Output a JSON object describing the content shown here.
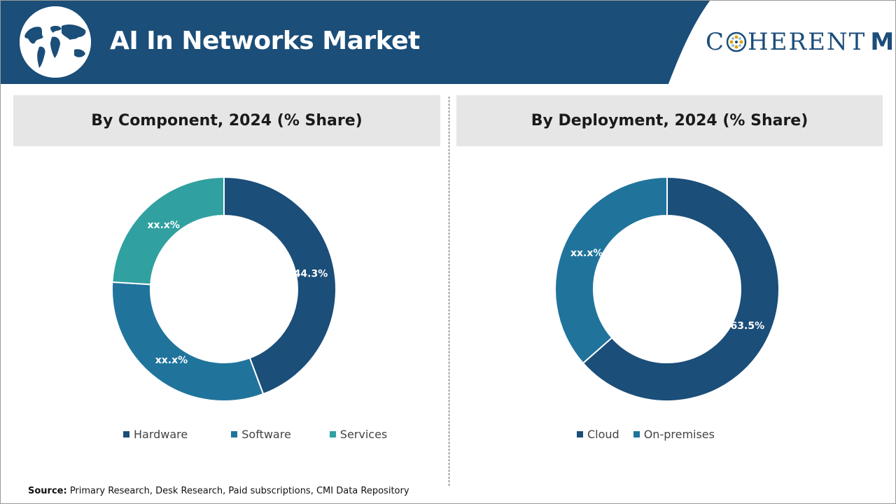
{
  "header": {
    "title": "AI In Networks Market",
    "brand_c": "C",
    "brand_rest": "HERENT",
    "brand_mi": "Mi",
    "band_color": "#1b4e79"
  },
  "panels": [
    {
      "heading": "By Component, 2024 (% Share)"
    },
    {
      "heading": "By Deployment, 2024 (% Share)"
    }
  ],
  "footer": {
    "source_label": "Source:",
    "source_text": " Primary Research, Desk Research, Paid subscriptions, CMI Data Repository"
  },
  "chart_data": [
    {
      "type": "pie",
      "donut": true,
      "title": "By Component, 2024 (% Share)",
      "categories": [
        "Hardware",
        "Software",
        "Services"
      ],
      "values": [
        44.3,
        31.7,
        24.0
      ],
      "labels": [
        "44.3%",
        "xx.x%",
        "xx.x%"
      ],
      "colors": [
        "#1b4e79",
        "#20749c",
        "#31a0a0"
      ],
      "legend_position": "bottom"
    },
    {
      "type": "pie",
      "donut": true,
      "title": "By Deployment, 2024 (% Share)",
      "categories": [
        "Cloud",
        "On-premises"
      ],
      "values": [
        63.5,
        36.5
      ],
      "labels": [
        "63.5%",
        "xx.x%"
      ],
      "colors": [
        "#1b4e79",
        "#20749c"
      ],
      "legend_position": "bottom"
    }
  ]
}
